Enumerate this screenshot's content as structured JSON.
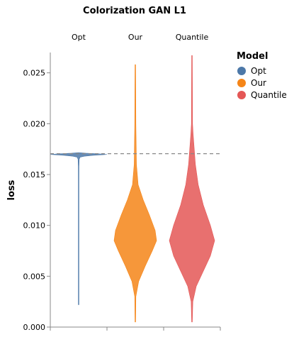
{
  "chart_data": {
    "type": "violin",
    "title": "Colorization GAN L1",
    "xlabel": "",
    "ylabel": "loss",
    "ylim": [
      0,
      0.027
    ],
    "y_ticks": [
      {
        "value": 0.0,
        "label": "0.000"
      },
      {
        "value": 0.005,
        "label": "0.005"
      },
      {
        "value": 0.01,
        "label": "0.010"
      },
      {
        "value": 0.015,
        "label": "0.015"
      },
      {
        "value": 0.02,
        "label": "0.020"
      },
      {
        "value": 0.025,
        "label": "0.025"
      }
    ],
    "facets": [
      "Opt",
      "Our",
      "Quantile"
    ],
    "reference_line": {
      "y": 0.01705,
      "style": "dashed",
      "color": "#888888"
    },
    "legend": {
      "title": "Model",
      "placement": "top-right"
    },
    "series": [
      {
        "name": "Opt",
        "color": "#4c78a8",
        "range": [
          0.0022,
          0.0171
        ],
        "profile": [
          [
            0.0022,
            0.004
          ],
          [
            0.0034,
            0.004
          ],
          [
            0.0053,
            0.004
          ],
          [
            0.008,
            0.005
          ],
          [
            0.0106,
            0.004
          ],
          [
            0.0126,
            0.004
          ],
          [
            0.0142,
            0.006
          ],
          [
            0.0158,
            0.012
          ],
          [
            0.0165,
            0.02
          ],
          [
            0.0167,
            0.05
          ],
          [
            0.0168,
            0.2
          ],
          [
            0.0169,
            0.55
          ],
          [
            0.01697,
            1.0
          ],
          [
            0.01703,
            0.75
          ],
          [
            0.0171,
            0.25
          ],
          [
            0.01715,
            0.0
          ]
        ]
      },
      {
        "name": "Our",
        "color": "#f58518",
        "range": [
          0.0005,
          0.0258
        ],
        "profile": [
          [
            0.0005,
            0.0
          ],
          [
            0.003,
            0.02
          ],
          [
            0.0045,
            0.12
          ],
          [
            0.006,
            0.35
          ],
          [
            0.0075,
            0.6
          ],
          [
            0.0085,
            0.75
          ],
          [
            0.0095,
            0.7
          ],
          [
            0.011,
            0.5
          ],
          [
            0.0125,
            0.28
          ],
          [
            0.014,
            0.1
          ],
          [
            0.016,
            0.04
          ],
          [
            0.02,
            0.02
          ],
          [
            0.0258,
            0.0
          ]
        ]
      },
      {
        "name": "Quantile",
        "color": "#e45756",
        "range": [
          0.0005,
          0.0267
        ],
        "profile": [
          [
            0.0005,
            0.0
          ],
          [
            0.0025,
            0.03
          ],
          [
            0.004,
            0.15
          ],
          [
            0.0055,
            0.4
          ],
          [
            0.007,
            0.65
          ],
          [
            0.0085,
            0.8
          ],
          [
            0.01,
            0.65
          ],
          [
            0.012,
            0.4
          ],
          [
            0.014,
            0.22
          ],
          [
            0.016,
            0.12
          ],
          [
            0.0175,
            0.08
          ],
          [
            0.019,
            0.04
          ],
          [
            0.02,
            0.02
          ],
          [
            0.0267,
            0.0
          ]
        ]
      }
    ]
  }
}
